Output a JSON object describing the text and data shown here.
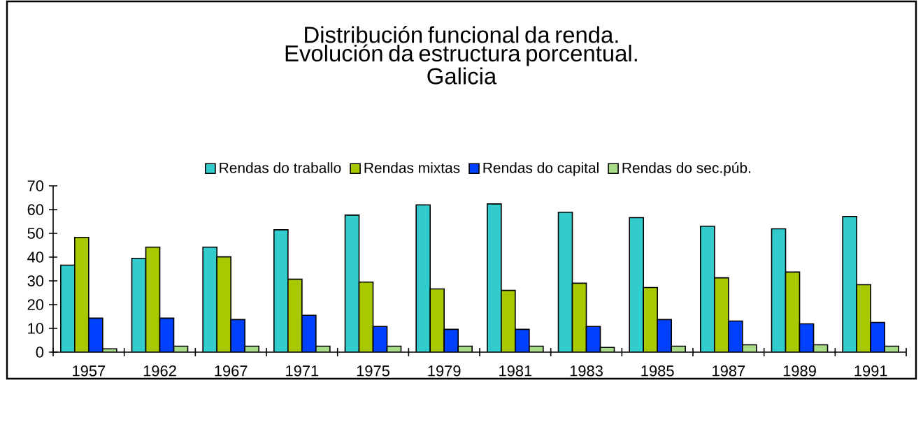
{
  "chart_data": {
    "type": "bar",
    "title": "Distribución funcional da renda. Evolución da estructura porcentual.",
    "subtitle": "Galicia",
    "categories": [
      "1957",
      "1962",
      "1967",
      "1971",
      "1975",
      "1979",
      "1981",
      "1983",
      "1985",
      "1987",
      "1989",
      "1991"
    ],
    "series": [
      {
        "name": "Rendas do traballo",
        "color": "#33cccc",
        "values": [
          36.6,
          39.5,
          44.2,
          51.5,
          57.7,
          62,
          62.4,
          58.9,
          56.6,
          53,
          51.9,
          57.1
        ]
      },
      {
        "name": "Rendas mixtas",
        "color": "#a8c800",
        "values": [
          48.3,
          44.2,
          40.1,
          30.7,
          29.5,
          26.6,
          26,
          29,
          27.2,
          31.3,
          33.7,
          28.4
        ]
      },
      {
        "name": "Rendas do capital",
        "color": "#0040ff",
        "values": [
          14.3,
          14.3,
          13.7,
          15.5,
          10.8,
          9.6,
          9.6,
          10.8,
          13.7,
          13.1,
          11.9,
          12.5
        ]
      },
      {
        "name": "Rendas do sec.púb.",
        "color": "#a8dc88",
        "values": [
          1.4,
          2.5,
          2.5,
          2.5,
          2.5,
          2.5,
          2.5,
          2,
          2.5,
          3.1,
          3.1,
          2.5
        ]
      }
    ],
    "ylim": [
      0,
      70
    ],
    "yticks": [
      0,
      10,
      20,
      30,
      40,
      50,
      60,
      70
    ],
    "grid": false,
    "legend": "top"
  }
}
